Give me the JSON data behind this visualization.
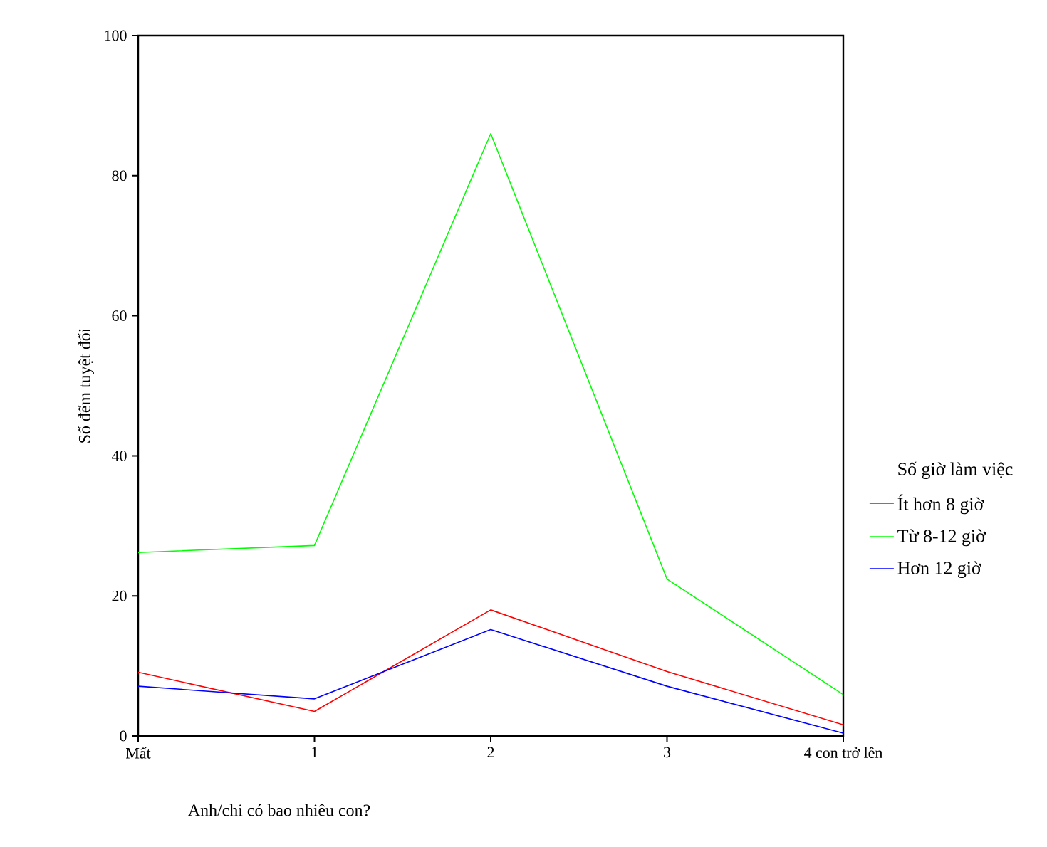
{
  "chart_data": {
    "type": "line",
    "xlabel": "Anh/chi có bao nhiêu con?",
    "ylabel": "Số đếm tuyệt đối",
    "legend_title": "Số giờ làm việc",
    "categories": [
      "Mất",
      "1",
      "2",
      "3",
      "4 con trở lên"
    ],
    "series": [
      {
        "name": "Ít hơn 8 giờ",
        "color": "#ff0000",
        "values": [
          9.1,
          3.5,
          18,
          9.2,
          1.6
        ]
      },
      {
        "name": "Từ 8-12 giờ",
        "color": "#00ff00",
        "values": [
          26.2,
          27.2,
          86,
          22.4,
          5.9
        ]
      },
      {
        "name": "Hơn 12 giờ",
        "color": "#0000ff",
        "values": [
          7.1,
          5.3,
          15.2,
          7.1,
          0.4
        ]
      }
    ],
    "ylim": [
      0,
      100
    ],
    "yticks": [
      0,
      20,
      40,
      60,
      80,
      100
    ],
    "legend": "right",
    "marker": "none",
    "line_style": "solid"
  }
}
